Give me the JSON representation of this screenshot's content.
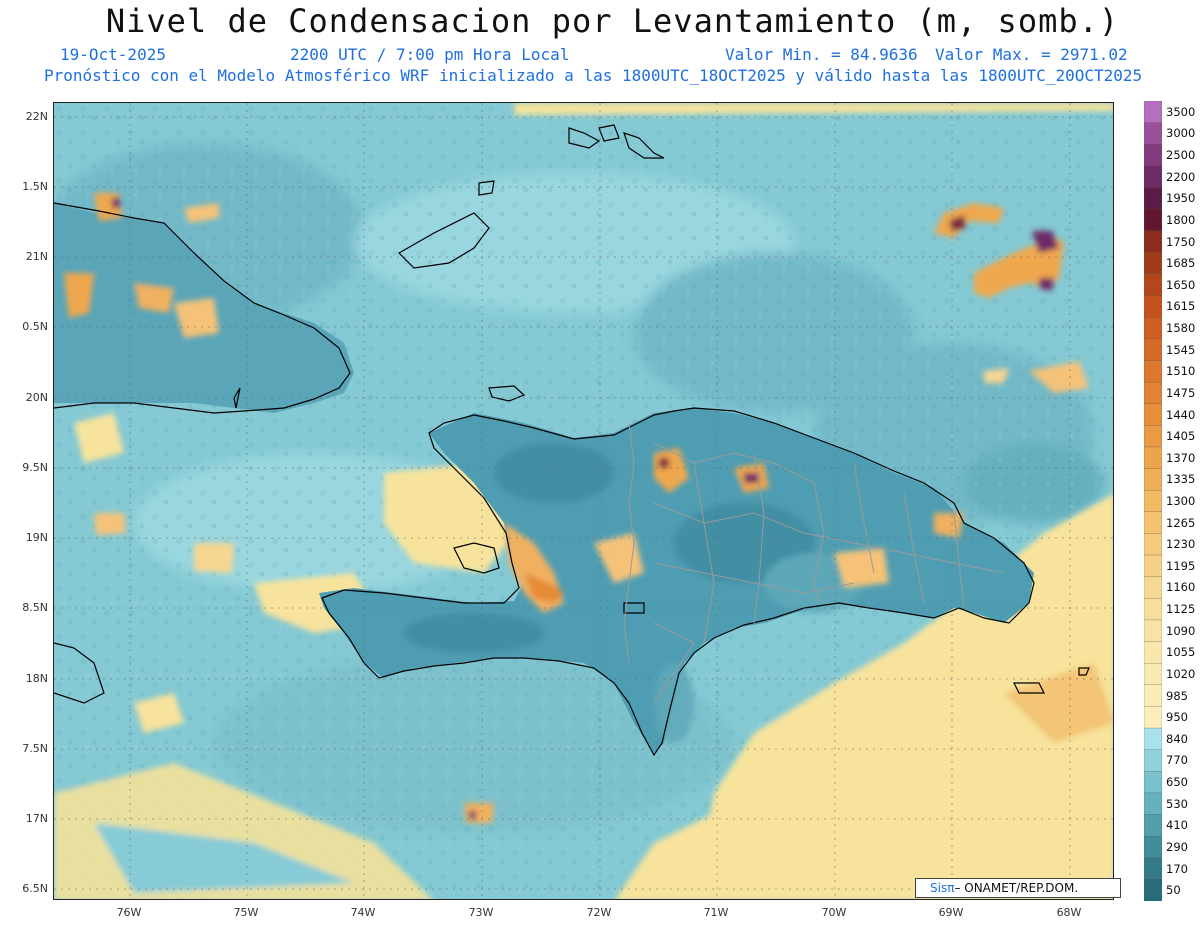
{
  "header": {
    "title": "Nivel de Condensacion por Levantamiento (m, somb.)",
    "date": "19-Oct-2025",
    "time": "2200 UTC / 7:00 pm Hora Local",
    "min_value": "Valor Min. = 84.9636",
    "max_value": "Valor Max. = 2971.02",
    "model_info": "Pronóstico con el Modelo Atmosférico WRF inicializado a las 1800UTC_18OCT2025 y válido hasta las  1800UTC_20OCT2025"
  },
  "map": {
    "lat_labels": [
      "22N",
      "1.5N",
      "21N",
      "0.5N",
      "20N",
      "9.5N",
      "19N",
      "8.5N",
      "18N",
      "7.5N",
      "17N",
      "6.5N"
    ],
    "lon_labels": [
      "76W",
      "75W",
      "74W",
      "73W",
      "72W",
      "71W",
      "70W",
      "69W",
      "68W"
    ],
    "colors": {
      "ocean_light": "#8fd0d8",
      "ocean_mid": "#6fb6c6",
      "land_low": "#4f9db2",
      "dry_yellow": "#f7e69a",
      "orange": "#efa74d",
      "dark_purple": "#5e1a3a",
      "coast": "#000000",
      "provinces": "#9a9a9a"
    }
  },
  "colorbar": {
    "labels": [
      "3500",
      "3000",
      "2500",
      "2200",
      "1950",
      "1800",
      "1750",
      "1685",
      "1650",
      "1615",
      "1580",
      "1545",
      "1510",
      "1475",
      "1440",
      "1405",
      "1370",
      "1335",
      "1300",
      "1265",
      "1230",
      "1195",
      "1160",
      "1125",
      "1090",
      "1055",
      "1020",
      "985",
      "950",
      "840",
      "770",
      "650",
      "530",
      "410",
      "290",
      "170",
      "50"
    ],
    "colors": [
      "#b56fbf",
      "#9a4f9a",
      "#833a7e",
      "#6e2b66",
      "#5a1c46",
      "#621630",
      "#8b2c1e",
      "#a23b1a",
      "#b4461c",
      "#c4521e",
      "#cd5f23",
      "#d56b28",
      "#dc772e",
      "#e28234",
      "#e78e3b",
      "#eb9943",
      "#eea44c",
      "#f0af57",
      "#f2b963",
      "#f4c26f",
      "#f5ca7b",
      "#f6d187",
      "#f7d892",
      "#f8de9c",
      "#f8e3a4",
      "#f9e7ab",
      "#f9eab1",
      "#faecb6",
      "#faefbc",
      "#a9e2ea",
      "#8ed3dc",
      "#78c2cd",
      "#65b1bd",
      "#529fac",
      "#428d9b",
      "#347b8a",
      "#286b7a"
    ]
  },
  "credit": {
    "sis": "Sisπ",
    "org": "– ONAMET/REP.DOM."
  }
}
